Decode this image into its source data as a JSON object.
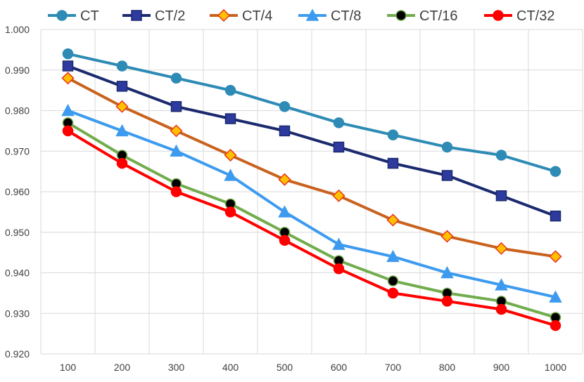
{
  "chart_data": {
    "type": "line",
    "title": "",
    "xlabel": "",
    "ylabel": "",
    "x": [
      100,
      200,
      300,
      400,
      500,
      600,
      700,
      800,
      900,
      1000
    ],
    "x_tick_labels": [
      "100",
      "200",
      "300",
      "400",
      "500",
      "600",
      "700",
      "800",
      "900",
      "1000"
    ],
    "ylim": [
      0.92,
      1.0
    ],
    "y_ticks": [
      0.92,
      0.93,
      0.94,
      0.95,
      0.96,
      0.97,
      0.98,
      0.99,
      1.0
    ],
    "y_tick_labels": [
      "0.920",
      "0.930",
      "0.940",
      "0.950",
      "0.960",
      "0.970",
      "0.980",
      "0.990",
      "1.000"
    ],
    "grid": "vertical and horizontal",
    "legend_position": "top",
    "series": [
      {
        "name": "CT",
        "color": "#2e8bb5",
        "marker": "circle",
        "marker_fill": "#2e8bb5",
        "marker_stroke": "#2e8bb5",
        "values": [
          0.994,
          0.991,
          0.988,
          0.985,
          0.981,
          0.977,
          0.974,
          0.971,
          0.969,
          0.965
        ]
      },
      {
        "name": "CT/2",
        "color": "#1b2a6e",
        "marker": "square",
        "marker_fill": "#2e3a9e",
        "marker_stroke": "#1b2a6e",
        "values": [
          0.991,
          0.986,
          0.981,
          0.978,
          0.975,
          0.971,
          0.967,
          0.964,
          0.959,
          0.954
        ]
      },
      {
        "name": "CT/4",
        "color": "#c9621e",
        "marker": "diamond",
        "marker_fill": "#ffc000",
        "marker_stroke": "#e8331b",
        "values": [
          0.988,
          0.981,
          0.975,
          0.969,
          0.963,
          0.959,
          0.953,
          0.949,
          0.946,
          0.944
        ]
      },
      {
        "name": "CT/8",
        "color": "#3d9bef",
        "marker": "triangle",
        "marker_fill": "#3d9bef",
        "marker_stroke": "#3d9bef",
        "values": [
          0.98,
          0.975,
          0.97,
          0.964,
          0.955,
          0.947,
          0.944,
          0.94,
          0.937,
          0.934
        ]
      },
      {
        "name": "CT/16",
        "color": "#72ac4d",
        "marker": "circle",
        "marker_fill": "#000000",
        "marker_stroke": "#72ac4d",
        "values": [
          0.977,
          0.969,
          0.962,
          0.957,
          0.95,
          0.943,
          0.938,
          0.935,
          0.933,
          0.929
        ]
      },
      {
        "name": "CT/32",
        "color": "#ff0000",
        "marker": "circle",
        "marker_fill": "#ff0000",
        "marker_stroke": "#ff0000",
        "values": [
          0.975,
          0.967,
          0.96,
          0.955,
          0.948,
          0.941,
          0.935,
          0.933,
          0.931,
          0.927
        ]
      }
    ]
  }
}
